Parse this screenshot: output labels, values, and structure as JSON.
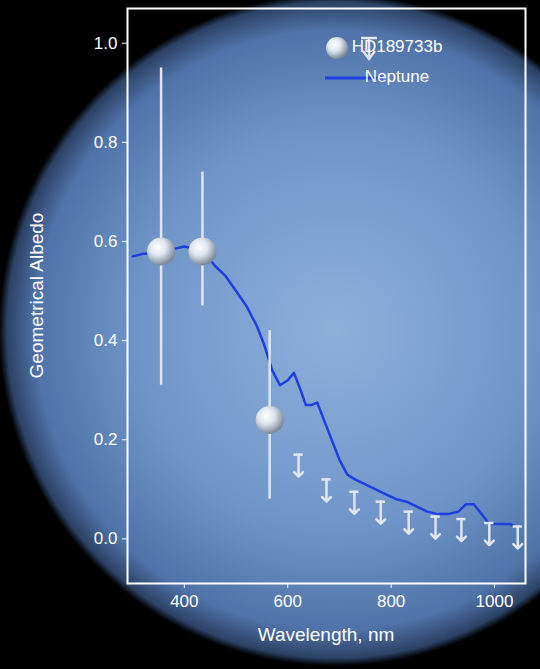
{
  "chart_data": {
    "type": "scatter",
    "xlabel": "Wavelength, nm",
    "ylabel": "Geometrical Albedo",
    "xlim": [
      290,
      1060
    ],
    "ylim": [
      -0.09,
      1.07
    ],
    "xticks": [
      400,
      600,
      800,
      1000
    ],
    "yticks": [
      {
        "value": 0,
        "label": "0.0"
      },
      {
        "value": 0.2,
        "label": "0.2"
      },
      {
        "value": 0.4,
        "label": "0.4"
      },
      {
        "value": 0.6,
        "label": "0.6"
      },
      {
        "value": 0.8,
        "label": "0.8"
      },
      {
        "value": 1,
        "label": "1.0"
      }
    ],
    "grid": false,
    "legend": "upper right",
    "series": [
      {
        "name": "HD189733b",
        "type": "scatter",
        "marker": "sphere",
        "color": "#dfe6ef",
        "x": [
          355,
          435,
          565
        ],
        "values": [
          0.58,
          0.58,
          0.24
        ],
        "y_low": [
          0.31,
          0.47,
          0.08
        ],
        "y_high": [
          0.95,
          0.74,
          0.42
        ],
        "upper_limits": {
          "x": [
            621,
            675,
            729,
            780,
            834,
            886,
            936,
            990,
            1045
          ],
          "values": [
            0.17,
            0.12,
            0.095,
            0.075,
            0.055,
            0.045,
            0.04,
            0.032,
            0.025
          ]
        }
      },
      {
        "name": "Neptune",
        "type": "line",
        "line_style": "solid",
        "color": "#1f3fe0",
        "x": [
          300,
          320,
          340,
          360,
          380,
          400,
          420,
          440,
          460,
          480,
          500,
          520,
          540,
          555,
          570,
          585,
          600,
          612,
          625,
          635,
          645,
          657,
          670,
          685,
          700,
          715,
          730,
          750,
          770,
          790,
          810,
          830,
          850,
          870,
          890,
          910,
          930,
          945,
          960,
          975,
          990,
          1010,
          1030,
          1040
        ],
        "values": [
          0.57,
          0.575,
          0.575,
          0.58,
          0.585,
          0.59,
          0.585,
          0.575,
          0.55,
          0.53,
          0.5,
          0.47,
          0.43,
          0.39,
          0.34,
          0.31,
          0.32,
          0.335,
          0.3,
          0.27,
          0.27,
          0.275,
          0.24,
          0.2,
          0.16,
          0.13,
          0.12,
          0.11,
          0.1,
          0.09,
          0.08,
          0.075,
          0.065,
          0.055,
          0.05,
          0.05,
          0.055,
          0.07,
          0.07,
          0.05,
          0.03,
          0.03,
          0.03,
          0.025
        ]
      }
    ]
  }
}
